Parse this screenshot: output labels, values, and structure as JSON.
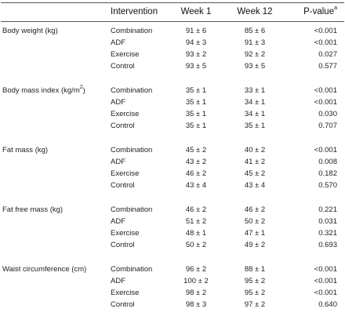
{
  "headers": {
    "intervention": "Intervention",
    "week1": "Week 1",
    "week12": "Week 12",
    "pvalue": "P-value",
    "pvalue_sup": "a"
  },
  "groups": [
    {
      "measure": "Body weight (kg)",
      "measure_sup": "",
      "measure_suffix": "",
      "rows": [
        {
          "intervention": "Combination",
          "week1": "91 ± 6",
          "week12": "85 ± 6",
          "p": "<0.001"
        },
        {
          "intervention": "ADF",
          "week1": "94 ± 3",
          "week12": "91 ± 3",
          "p": "<0.001"
        },
        {
          "intervention": "Exercise",
          "week1": "93 ± 2",
          "week12": "92 ± 2",
          "p": "0.027"
        },
        {
          "intervention": "Control",
          "week1": "93 ± 5",
          "week12": "93 ± 5",
          "p": "0.577"
        }
      ]
    },
    {
      "measure": "Body mass index (kg/m",
      "measure_sup": "2",
      "measure_suffix": ")",
      "rows": [
        {
          "intervention": "Combination",
          "week1": "35 ± 1",
          "week12": "33 ± 1",
          "p": "<0.001"
        },
        {
          "intervention": "ADF",
          "week1": "35 ± 1",
          "week12": "34 ± 1",
          "p": "<0.001"
        },
        {
          "intervention": "Exercise",
          "week1": "35 ± 1",
          "week12": "34 ± 1",
          "p": "0.030"
        },
        {
          "intervention": "Control",
          "week1": "35 ± 1",
          "week12": "35 ± 1",
          "p": "0.707"
        }
      ]
    },
    {
      "measure": "Fat mass (kg)",
      "measure_sup": "",
      "measure_suffix": "",
      "rows": [
        {
          "intervention": "Combination",
          "week1": "45 ± 2",
          "week12": "40 ± 2",
          "p": "<0.001"
        },
        {
          "intervention": "ADF",
          "week1": "43 ± 2",
          "week12": "41 ± 2",
          "p": "0.008"
        },
        {
          "intervention": "Exercise",
          "week1": "46 ± 2",
          "week12": "45 ± 2",
          "p": "0.182"
        },
        {
          "intervention": "Control",
          "week1": "43 ± 4",
          "week12": "43 ± 4",
          "p": "0.570"
        }
      ]
    },
    {
      "measure": "Fat free mass (kg)",
      "measure_sup": "",
      "measure_suffix": "",
      "rows": [
        {
          "intervention": "Combination",
          "week1": "46 ± 2",
          "week12": "46 ± 2",
          "p": "0.221"
        },
        {
          "intervention": "ADF",
          "week1": "51 ± 2",
          "week12": "50 ± 2",
          "p": "0.031"
        },
        {
          "intervention": "Exercise",
          "week1": "48 ± 1",
          "week12": "47 ± 1",
          "p": "0.321"
        },
        {
          "intervention": "Control",
          "week1": "50 ± 2",
          "week12": "49 ± 2",
          "p": "0.693"
        }
      ]
    },
    {
      "measure": "Waist circumference (cm)",
      "measure_sup": "",
      "measure_suffix": "",
      "rows": [
        {
          "intervention": "Combination",
          "week1": "96 ± 2",
          "week12": "88 ± 1",
          "p": "<0.001"
        },
        {
          "intervention": "ADF",
          "week1": "100 ± 2",
          "week12": "95 ± 2",
          "p": "<0.001"
        },
        {
          "intervention": "Exercise",
          "week1": "98 ± 2",
          "week12": "95 ± 2",
          "p": "<0.001"
        },
        {
          "intervention": "Control",
          "week1": "98 ± 3",
          "week12": "97 ± 2",
          "p": "0.640"
        }
      ]
    }
  ]
}
